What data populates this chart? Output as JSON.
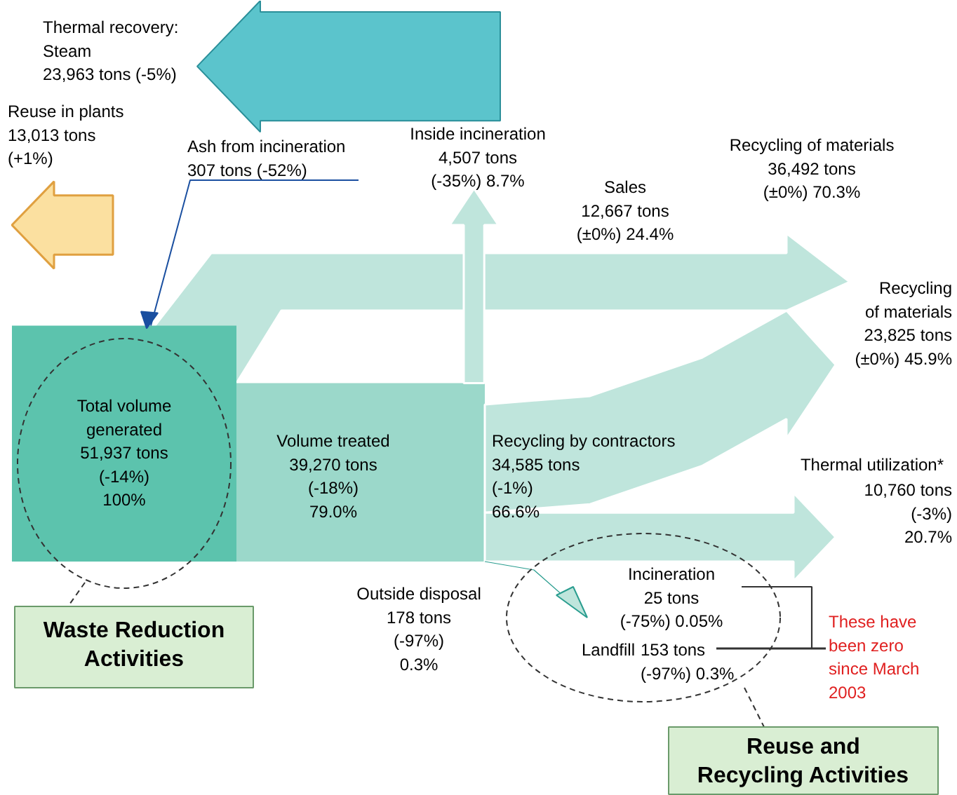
{
  "chart_data": {
    "type": "other",
    "categories": [
      "Thermal recovery:\nSteam",
      "Reuse in plants",
      "Ash from incineration",
      "Inside incineration",
      "Recycling of materials",
      "Sales",
      "Recycling\nof materials",
      "Total volume\ngenerated",
      "Volume treated",
      "Recycling by contractors",
      "Thermal utilization*",
      "Outside disposal",
      "Incineration",
      "Landfill"
    ],
    "values": [
      23963,
      13013,
      307,
      4507,
      36492,
      12667,
      23825,
      51937,
      39270,
      34585,
      10760,
      178,
      25,
      153
    ],
    "value_labels": [
      "23,963 tons (-5%)",
      "13,013 tons\n(+1%)",
      "307 tons (-52%)",
      "4,507 tons\n(-35%) 8.7%",
      "36,492 tons\n(±0%) 70.3%",
      "12,667 tons\n(±0%) 24.4%",
      "23,825 tons\n(±0%) 45.9%",
      "51,937 tons\n(-14%)\n100%",
      "39,270 tons\n(-18%)\n79.0%",
      "34,585 tons\n(-1%)\n66.6%",
      "10,760 tons\n(-3%)\n20.7%",
      "178 tons\n(-97%)\n0.3%",
      "25 tons\n(-75%) 0.05%",
      "153 tons\n(-97%) 0.3%"
    ],
    "annotations": [
      "These have\nbeen zero\nsince March\n2003",
      "Waste Reduction\nActivities",
      "Reuse and\nRecycling Activities"
    ]
  }
}
